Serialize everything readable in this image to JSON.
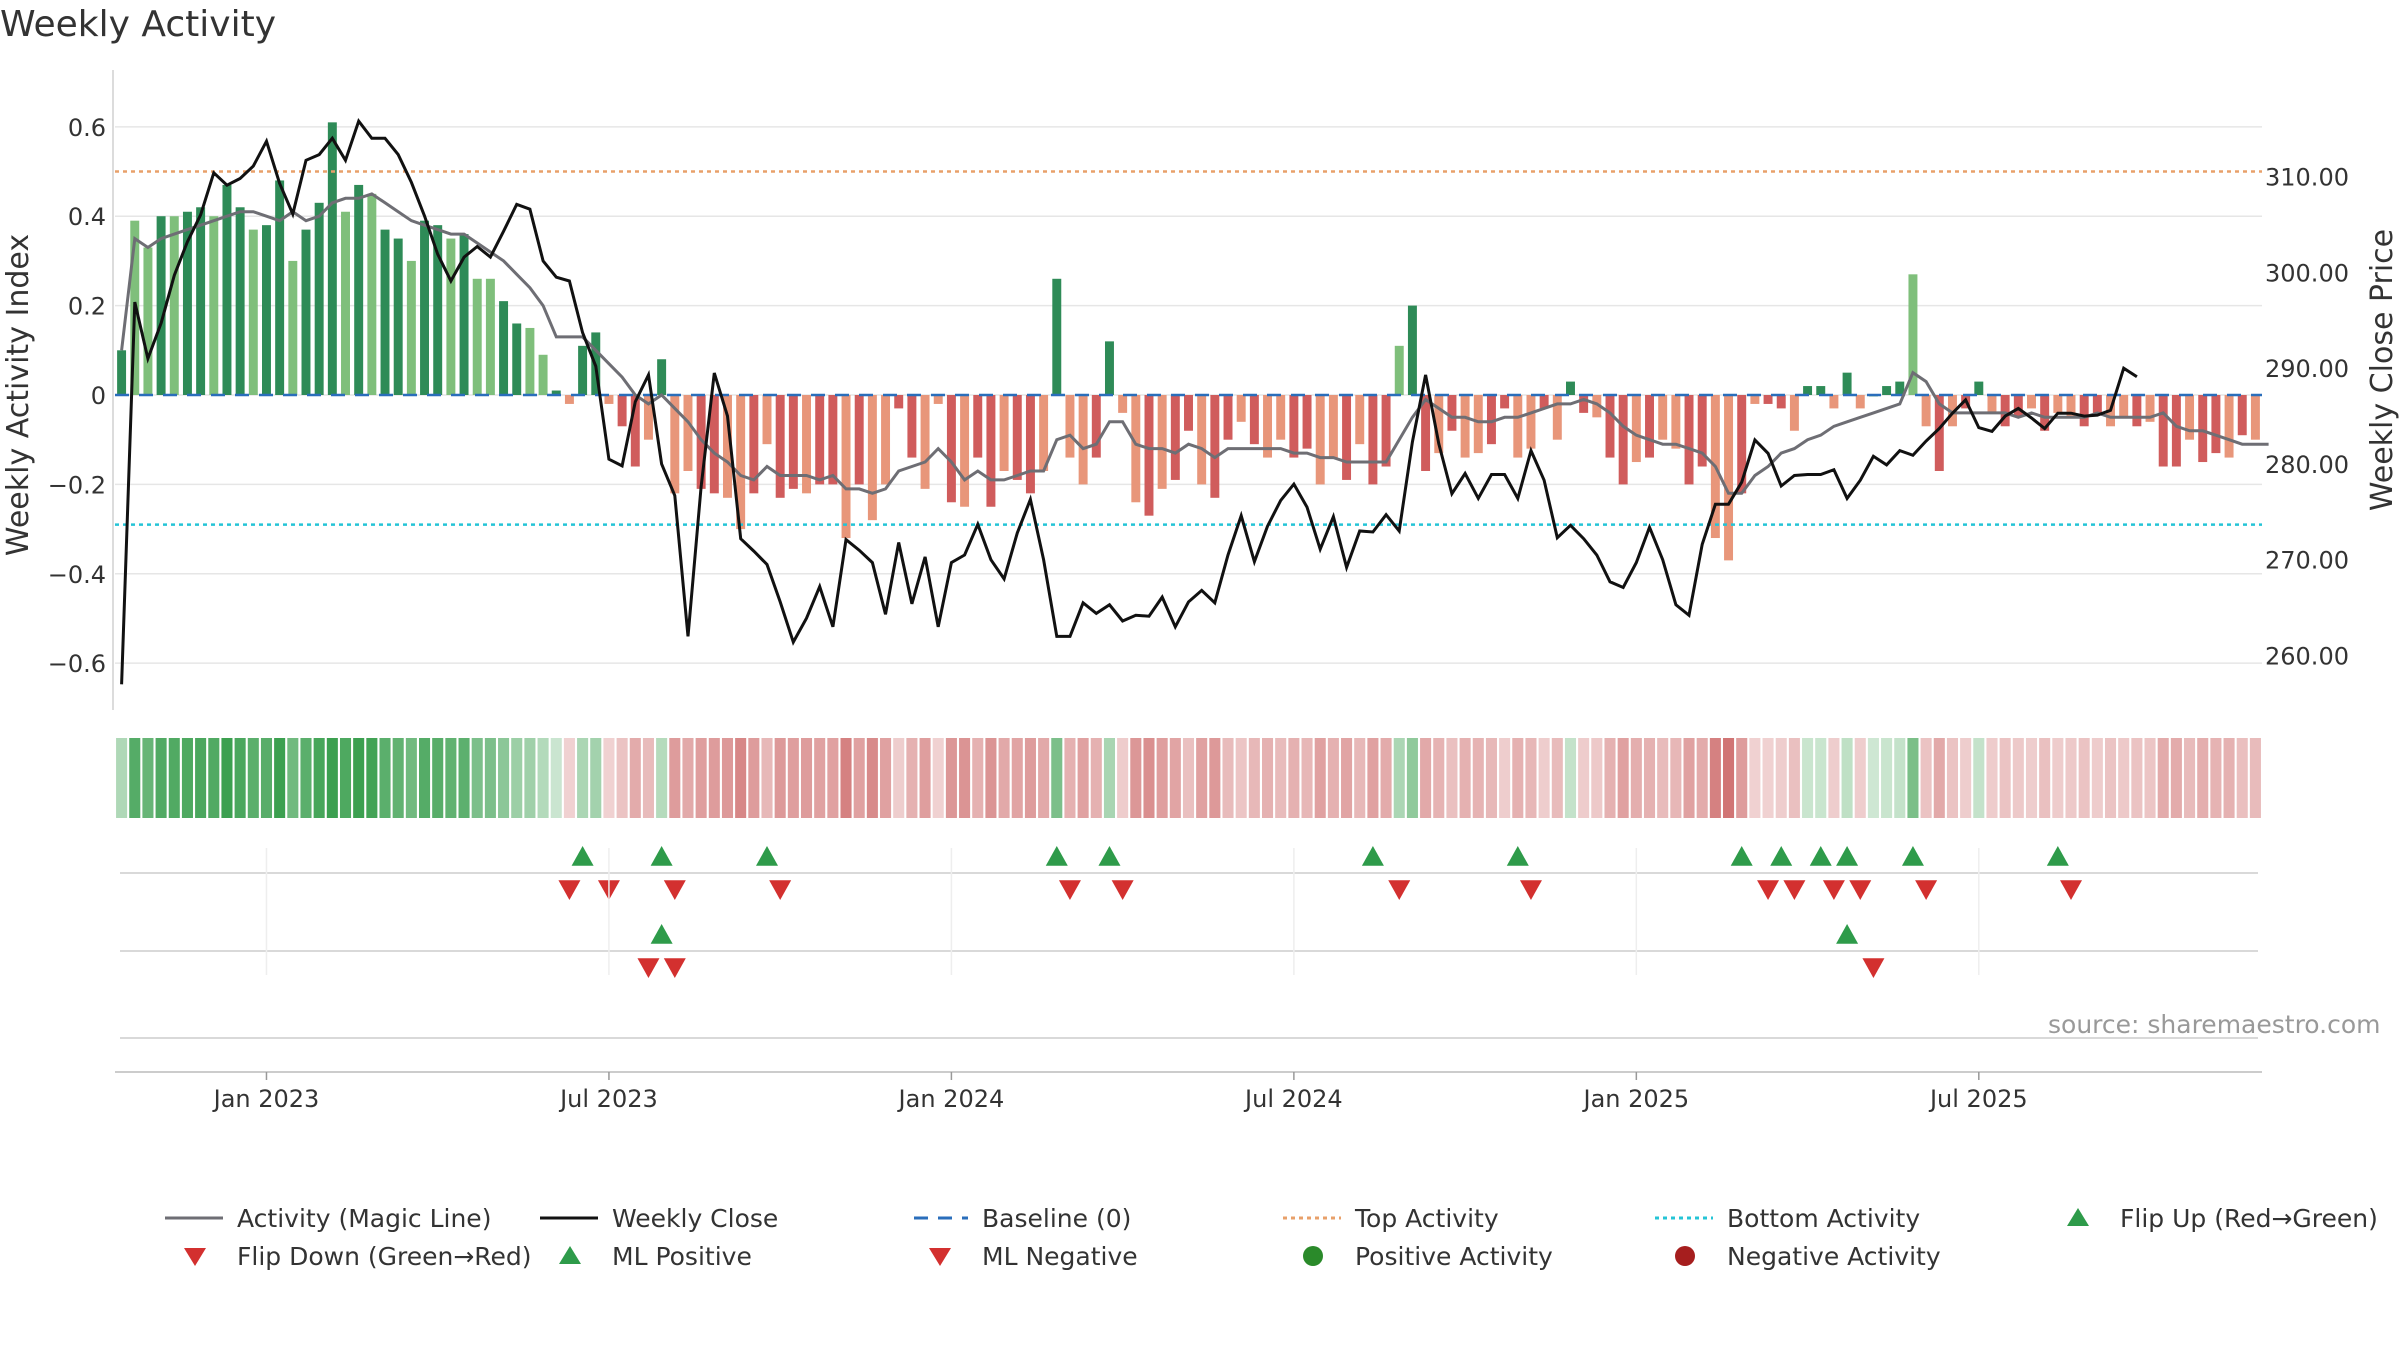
{
  "chart_data": {
    "type": "bar+line",
    "title": "Weekly Activity",
    "source": "source: sharemaestro.com",
    "ylabel_left": "Weekly Activity Index",
    "ylabel_right": "Weekly Close Price",
    "ylim_left": [
      -0.66,
      0.66
    ],
    "ylim_right": [
      256.4,
      318.0
    ],
    "yticks_left": [
      0.6,
      0.4,
      0.2,
      0,
      -0.2,
      -0.4,
      -0.6
    ],
    "yticks_left_labels": [
      "0.6",
      "0.4",
      "0.2",
      "0",
      "−0.2",
      "−0.4",
      "−0.6"
    ],
    "yticks_right": [
      310,
      300,
      290,
      280,
      270,
      260
    ],
    "yticks_right_labels": [
      "310.00",
      "300.00",
      "290.00",
      "280.00",
      "270.00",
      "260.00"
    ],
    "x_start_week": "2022-10-17",
    "x_ticks": [
      {
        "week": 11,
        "label": "Jan 2023"
      },
      {
        "week": 37,
        "label": "Jul 2023"
      },
      {
        "week": 63,
        "label": "Jan 2024"
      },
      {
        "week": 89,
        "label": "Jul 2024"
      },
      {
        "week": 115,
        "label": "Jan 2025"
      },
      {
        "week": 141,
        "label": "Jul 2025"
      }
    ],
    "top_activity": 0.5,
    "bottom_activity": -0.29,
    "baseline": 0,
    "activity": [
      0.1,
      0.39,
      0.33,
      0.4,
      0.4,
      0.41,
      0.42,
      0.4,
      0.47,
      0.42,
      0.37,
      0.38,
      0.48,
      0.3,
      0.37,
      0.43,
      0.61,
      0.41,
      0.47,
      0.45,
      0.37,
      0.35,
      0.3,
      0.39,
      0.38,
      0.35,
      0.36,
      0.26,
      0.26,
      0.21,
      0.16,
      0.15,
      0.09,
      0.01,
      -0.02,
      0.11,
      0.14,
      -0.02,
      -0.07,
      -0.16,
      -0.1,
      0.08,
      -0.22,
      -0.17,
      -0.21,
      -0.22,
      -0.23,
      -0.3,
      -0.22,
      -0.11,
      -0.23,
      -0.21,
      -0.22,
      -0.2,
      -0.2,
      -0.32,
      -0.2,
      -0.28,
      -0.2,
      -0.03,
      -0.14,
      -0.21,
      -0.02,
      -0.24,
      -0.25,
      -0.14,
      -0.25,
      -0.17,
      -0.19,
      -0.22,
      -0.17,
      0.26,
      -0.14,
      -0.2,
      -0.14,
      0.12,
      -0.04,
      -0.24,
      -0.27,
      -0.21,
      -0.19,
      -0.08,
      -0.2,
      -0.23,
      -0.1,
      -0.06,
      -0.11,
      -0.14,
      -0.1,
      -0.14,
      -0.12,
      -0.2,
      -0.14,
      -0.19,
      -0.11,
      -0.2,
      -0.16,
      0.11,
      0.2,
      -0.17,
      -0.13,
      -0.08,
      -0.14,
      -0.13,
      -0.11,
      -0.03,
      -0.14,
      -0.12,
      -0.03,
      -0.1,
      0.03,
      -0.04,
      -0.05,
      -0.14,
      -0.2,
      -0.15,
      -0.14,
      -0.1,
      -0.12,
      -0.2,
      -0.16,
      -0.32,
      -0.37,
      -0.22,
      -0.02,
      -0.02,
      -0.03,
      -0.08,
      0.02,
      0.02,
      -0.03,
      0.05,
      -0.03,
      0.0,
      0.02,
      0.03,
      0.27,
      -0.07,
      -0.17,
      -0.07,
      -0.03,
      0.03,
      -0.04,
      -0.07,
      -0.05,
      -0.03,
      -0.08,
      -0.04,
      -0.05,
      -0.07,
      -0.04,
      -0.07,
      -0.05,
      -0.07,
      -0.06,
      -0.16,
      -0.16,
      -0.1,
      -0.15,
      -0.13,
      -0.14,
      -0.09,
      -0.1
    ],
    "magic_line": [
      0.1,
      0.35,
      0.33,
      0.35,
      0.36,
      0.37,
      0.38,
      0.39,
      0.4,
      0.41,
      0.41,
      0.4,
      0.39,
      0.41,
      0.39,
      0.4,
      0.43,
      0.44,
      0.44,
      0.45,
      0.43,
      0.41,
      0.39,
      0.38,
      0.37,
      0.36,
      0.36,
      0.34,
      0.32,
      0.3,
      0.27,
      0.24,
      0.2,
      0.13,
      0.13,
      0.13,
      0.1,
      0.07,
      0.04,
      0.0,
      -0.02,
      0.0,
      -0.03,
      -0.06,
      -0.1,
      -0.13,
      -0.15,
      -0.18,
      -0.19,
      -0.16,
      -0.18,
      -0.18,
      -0.18,
      -0.19,
      -0.18,
      -0.21,
      -0.21,
      -0.22,
      -0.21,
      -0.17,
      -0.16,
      -0.15,
      -0.12,
      -0.15,
      -0.19,
      -0.17,
      -0.19,
      -0.19,
      -0.18,
      -0.17,
      -0.17,
      -0.1,
      -0.09,
      -0.12,
      -0.11,
      -0.06,
      -0.06,
      -0.11,
      -0.12,
      -0.12,
      -0.13,
      -0.11,
      -0.12,
      -0.14,
      -0.12,
      -0.12,
      -0.12,
      -0.12,
      -0.12,
      -0.13,
      -0.13,
      -0.14,
      -0.14,
      -0.15,
      -0.15,
      -0.15,
      -0.15,
      -0.1,
      -0.05,
      -0.01,
      -0.03,
      -0.05,
      -0.05,
      -0.06,
      -0.06,
      -0.05,
      -0.05,
      -0.04,
      -0.03,
      -0.02,
      -0.02,
      -0.01,
      -0.02,
      -0.04,
      -0.07,
      -0.09,
      -0.1,
      -0.11,
      -0.11,
      -0.12,
      -0.13,
      -0.16,
      -0.22,
      -0.22,
      -0.18,
      -0.16,
      -0.13,
      -0.12,
      -0.1,
      -0.09,
      -0.07,
      -0.06,
      -0.05,
      -0.04,
      -0.03,
      -0.02,
      0.05,
      0.03,
      -0.02,
      -0.04,
      -0.04,
      -0.04,
      -0.04,
      -0.04,
      -0.05,
      -0.04,
      -0.05,
      -0.05,
      -0.05,
      -0.05,
      -0.04,
      -0.05,
      -0.05,
      -0.05,
      -0.05,
      -0.04,
      -0.07,
      -0.08,
      -0.08,
      -0.09,
      -0.1,
      -0.11,
      -0.11,
      -0.11
    ],
    "weekly_close": [
      257.0,
      296.9,
      291.0,
      294.7,
      299.7,
      303.2,
      306.0,
      310.4,
      309.1,
      309.8,
      311.1,
      313.7,
      309.3,
      306.1,
      311.7,
      312.3,
      314.0,
      311.7,
      315.8,
      314.0,
      314.0,
      312.3,
      309.4,
      305.9,
      301.9,
      299.1,
      301.6,
      302.7,
      301.6,
      304.3,
      307.1,
      306.6,
      301.2,
      299.5,
      299.1,
      293.7,
      290.2,
      280.5,
      279.8,
      286.5,
      289.3,
      280.0,
      276.7,
      262.0,
      277.6,
      289.5,
      285.0,
      272.2,
      270.9,
      269.5,
      265.6,
      261.4,
      263.9,
      267.2,
      263.0,
      272.1,
      271.0,
      269.7,
      264.3,
      271.8,
      265.4,
      270.3,
      263.0,
      269.7,
      270.5,
      273.7,
      270.0,
      268.0,
      272.8,
      276.3,
      270.0,
      262.0,
      262.0,
      265.5,
      264.4,
      265.3,
      263.6,
      264.2,
      264.1,
      266.1,
      263.0,
      265.6,
      266.8,
      265.5,
      270.5,
      274.6,
      269.8,
      273.5,
      276.2,
      277.9,
      275.5,
      271.1,
      274.5,
      269.2,
      273.0,
      272.9,
      274.7,
      273.0,
      282.3,
      289.3,
      282.1,
      276.9,
      279.0,
      276.4,
      278.9,
      278.9,
      276.4,
      281.4,
      278.3,
      272.3,
      273.6,
      272.2,
      270.5,
      267.7,
      267.1,
      269.7,
      273.4,
      270.0,
      265.3,
      264.2,
      271.6,
      275.8,
      275.8,
      278.1,
      282.5,
      281.1,
      277.7,
      278.8,
      278.9,
      278.9,
      279.4,
      276.4,
      278.3,
      280.8,
      279.9,
      281.4,
      280.9,
      282.4,
      283.7,
      285.3,
      286.7,
      283.8,
      283.4,
      285.0,
      285.8,
      284.8,
      283.7,
      285.3,
      285.3,
      285.0,
      285.1,
      285.6,
      290.0,
      289.1
    ]
  },
  "indicators": {
    "flip_up_weeks": [
      35,
      41,
      49,
      71,
      75,
      95,
      106,
      123,
      126,
      129,
      131,
      136,
      147
    ],
    "flip_down_weeks": [
      34,
      37,
      42,
      50,
      72,
      76,
      97,
      107,
      125,
      127,
      130,
      132,
      137,
      148
    ],
    "ml_positive_weeks": [
      41,
      131
    ],
    "ml_negative_weeks": [
      40,
      42,
      133
    ],
    "positive_activity_weeks": [],
    "negative_activity_weeks": []
  },
  "legend": [
    {
      "key": "magic_line",
      "label": "Activity (Magic Line)",
      "symbol": "line",
      "color": "#6e6e74"
    },
    {
      "key": "weekly_close",
      "label": "Weekly Close",
      "symbol": "line",
      "color": "#111111"
    },
    {
      "key": "baseline",
      "label": "Baseline (0)",
      "symbol": "dash",
      "color": "#2a6ebb"
    },
    {
      "key": "top_activity",
      "label": "Top Activity",
      "symbol": "dot",
      "color": "#e8a06a"
    },
    {
      "key": "bottom_activity",
      "label": "Bottom Activity",
      "symbol": "dot",
      "color": "#25c4d6"
    },
    {
      "key": "flip_up",
      "label": "Flip Up (Red→Green)",
      "symbol": "tri-up",
      "color": "#2e9b4a"
    },
    {
      "key": "flip_down",
      "label": "Flip Down (Green→Red)",
      "symbol": "tri-down",
      "color": "#d3302f"
    },
    {
      "key": "ml_positive",
      "label": "ML Positive",
      "symbol": "tri-up",
      "color": "#2e9b4a"
    },
    {
      "key": "ml_negative",
      "label": "ML Negative",
      "symbol": "tri-down",
      "color": "#d3302f"
    },
    {
      "key": "positive_activity",
      "label": "Positive Activity",
      "symbol": "circle",
      "color": "#2a8a2a"
    },
    {
      "key": "negative_activity",
      "label": "Negative Activity",
      "symbol": "circle",
      "color": "#a61e1e"
    }
  ],
  "colors": {
    "pos_strong": "#2e8b57",
    "pos_light": "#7fbf7b",
    "neg_strong": "#d05c5c",
    "neg_light": "#e8967a",
    "grid": "#e6e6e6"
  }
}
